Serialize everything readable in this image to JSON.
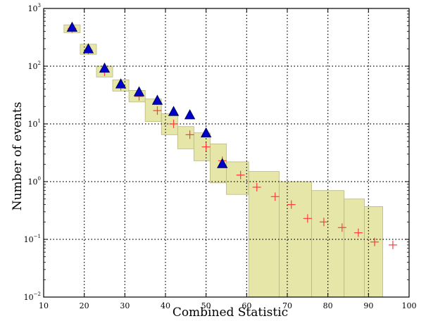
{
  "chart_data": {
    "type": "scatter",
    "xlabel": "Combined Statistic",
    "ylabel": "Number of events",
    "xlim": [
      10,
      100
    ],
    "ylim": [
      0.01,
      1000
    ],
    "yscale": "log",
    "grid": true,
    "xticks": [
      10,
      20,
      30,
      40,
      50,
      60,
      70,
      80,
      90,
      100
    ],
    "yticks": [
      {
        "value": 0.01,
        "base": "10",
        "exp": "−2"
      },
      {
        "value": 0.1,
        "base": "10",
        "exp": "−1"
      },
      {
        "value": 1,
        "base": "10",
        "exp": "0"
      },
      {
        "value": 10,
        "base": "10",
        "exp": "1"
      },
      {
        "value": 100,
        "base": "10",
        "exp": "2"
      },
      {
        "value": 1000,
        "base": "10",
        "exp": "3"
      }
    ],
    "band": {
      "color": "#e6e6a8",
      "edge_color": "#b8b880",
      "bins": [
        {
          "x0": 15,
          "x1": 19,
          "lo": 380,
          "hi": 520
        },
        {
          "x0": 19,
          "x1": 23,
          "lo": 160,
          "hi": 240
        },
        {
          "x0": 23,
          "x1": 27,
          "lo": 65,
          "hi": 100
        },
        {
          "x0": 27,
          "x1": 31,
          "lo": 37,
          "hi": 58
        },
        {
          "x0": 31,
          "x1": 35,
          "lo": 24,
          "hi": 38
        },
        {
          "x0": 35,
          "x1": 39,
          "lo": 11,
          "hi": 27
        },
        {
          "x0": 39,
          "x1": 43,
          "lo": 6.5,
          "hi": 15
        },
        {
          "x0": 43,
          "x1": 47,
          "lo": 3.7,
          "hi": 9
        },
        {
          "x0": 47,
          "x1": 51,
          "lo": 2.3,
          "hi": 7
        },
        {
          "x0": 51,
          "x1": 55,
          "lo": 0.95,
          "hi": 4.5
        },
        {
          "x0": 55,
          "x1": 60.5,
          "lo": 0.6,
          "hi": 2.2
        },
        {
          "x0": 60.5,
          "x1": 68,
          "lo": 0.01,
          "hi": 1.5
        },
        {
          "x0": 68,
          "x1": 76,
          "lo": 0.01,
          "hi": 1.0
        },
        {
          "x0": 76,
          "x1": 84,
          "lo": 0.01,
          "hi": 0.7
        },
        {
          "x0": 84,
          "x1": 89,
          "lo": 0.01,
          "hi": 0.5
        },
        {
          "x0": 89,
          "x1": 93.5,
          "lo": 0.01,
          "hi": 0.37
        }
      ]
    },
    "series": [
      {
        "marker": "cross",
        "color": "#ff3b3b",
        "points": [
          {
            "x": 17,
            "y": 450
          },
          {
            "x": 21,
            "y": 190
          },
          {
            "x": 25,
            "y": 80
          },
          {
            "x": 29,
            "y": 45
          },
          {
            "x": 33.5,
            "y": 30
          },
          {
            "x": 38,
            "y": 17
          },
          {
            "x": 42,
            "y": 10
          },
          {
            "x": 46,
            "y": 6.5
          },
          {
            "x": 50,
            "y": 4
          },
          {
            "x": 54,
            "y": 2.3
          },
          {
            "x": 58.5,
            "y": 1.3
          },
          {
            "x": 62.5,
            "y": 0.8
          },
          {
            "x": 67,
            "y": 0.55
          },
          {
            "x": 71,
            "y": 0.4
          },
          {
            "x": 75,
            "y": 0.23
          },
          {
            "x": 79,
            "y": 0.2
          },
          {
            "x": 83.5,
            "y": 0.16
          },
          {
            "x": 87.5,
            "y": 0.13
          },
          {
            "x": 91.5,
            "y": 0.09
          },
          {
            "x": 96,
            "y": 0.08
          }
        ]
      },
      {
        "marker": "triangle",
        "color": "#0000cc",
        "edge_color": "#000044",
        "points": [
          {
            "x": 17,
            "y": 460
          },
          {
            "x": 21,
            "y": 195
          },
          {
            "x": 25,
            "y": 90
          },
          {
            "x": 29,
            "y": 48
          },
          {
            "x": 33.5,
            "y": 35
          },
          {
            "x": 38,
            "y": 25
          },
          {
            "x": 42,
            "y": 16
          },
          {
            "x": 46,
            "y": 14
          },
          {
            "x": 50,
            "y": 6.8
          },
          {
            "x": 54,
            "y": 2.0
          }
        ]
      }
    ]
  }
}
